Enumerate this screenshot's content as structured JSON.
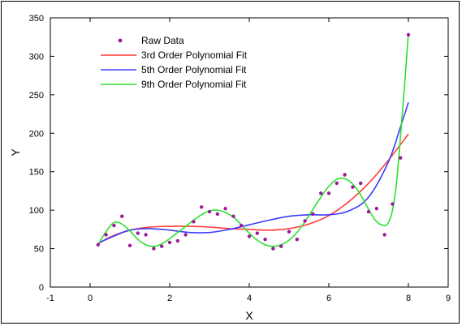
{
  "chart_data": {
    "type": "line",
    "title": "",
    "xlabel": "X",
    "ylabel": "Y",
    "xlim": [
      -1,
      9
    ],
    "ylim": [
      0,
      350
    ],
    "xticks": [
      -1,
      0,
      2,
      4,
      6,
      8,
      9
    ],
    "yticks": [
      0,
      50,
      100,
      150,
      200,
      250,
      300,
      350
    ],
    "xtick_labels": [
      "-1",
      "0",
      "2",
      "4",
      "6",
      "8",
      "9"
    ],
    "ytick_labels": [
      "0",
      "50",
      "100",
      "150",
      "200",
      "250",
      "300",
      "350"
    ],
    "grid": false,
    "legend_position": "top-left",
    "legend": [
      "Raw Data",
      "3rd Order Polynomial Fit",
      "5th Order Polynomial Fit",
      "9th Order Polynomial Fit"
    ],
    "colors": {
      "raw": "#9b1a9b",
      "fit3": "#ff3b3b",
      "fit5": "#3b3bff",
      "fit9": "#2de02d"
    },
    "raw_data": {
      "name": "Raw Data",
      "x": [
        0.2,
        0.4,
        0.6,
        0.8,
        1.0,
        1.2,
        1.4,
        1.6,
        1.8,
        2.0,
        2.2,
        2.4,
        2.6,
        2.8,
        3.0,
        3.2,
        3.4,
        3.6,
        3.8,
        4.0,
        4.2,
        4.4,
        4.6,
        4.8,
        5.0,
        5.2,
        5.4,
        5.6,
        5.8,
        6.0,
        6.2,
        6.4,
        6.6,
        6.8,
        7.0,
        7.2,
        7.4,
        7.6,
        7.8,
        8.0
      ],
      "y": [
        55,
        68,
        80,
        92,
        54,
        70,
        68,
        50,
        53,
        58,
        60,
        68,
        85,
        104,
        98,
        95,
        102,
        92,
        80,
        66,
        70,
        62,
        50,
        53,
        72,
        62,
        86,
        95,
        122,
        122,
        135,
        146,
        130,
        135,
        98,
        102,
        68,
        108,
        168,
        328
      ]
    },
    "series": [
      {
        "name": "3rd Order Polynomial Fit",
        "x": [
          0.2,
          0.5,
          1.0,
          1.5,
          2.0,
          2.5,
          3.0,
          3.5,
          4.0,
          4.5,
          5.0,
          5.5,
          6.0,
          6.5,
          7.0,
          7.5,
          8.0
        ],
        "y": [
          56,
          65,
          74,
          78,
          79,
          79,
          78,
          76,
          75,
          74,
          76,
          82,
          93,
          111,
          135,
          165,
          199
        ]
      },
      {
        "name": "5th Order Polynomial Fit",
        "x": [
          0.2,
          0.5,
          1.0,
          1.5,
          2.0,
          2.5,
          3.0,
          3.5,
          4.0,
          4.5,
          5.0,
          5.5,
          6.0,
          6.5,
          7.0,
          7.5,
          7.8,
          8.0
        ],
        "y": [
          57,
          64,
          74,
          76,
          74,
          71,
          71,
          75,
          81,
          87,
          92,
          94,
          94,
          99,
          117,
          163,
          208,
          240
        ]
      },
      {
        "name": "9th Order Polynomial Fit",
        "x": [
          0.2,
          0.4,
          0.6,
          0.8,
          1.0,
          1.2,
          1.4,
          1.6,
          1.8,
          2.0,
          2.2,
          2.4,
          2.6,
          2.8,
          3.0,
          3.2,
          3.4,
          3.6,
          3.8,
          4.0,
          4.2,
          4.4,
          4.6,
          4.8,
          5.0,
          5.2,
          5.4,
          5.6,
          5.8,
          6.0,
          6.2,
          6.4,
          6.6,
          6.8,
          7.0,
          7.2,
          7.4,
          7.5,
          7.6,
          7.7,
          7.8,
          7.9,
          8.0
        ],
        "y": [
          55,
          72,
          84,
          82,
          73,
          62,
          55,
          53,
          56,
          63,
          71,
          79,
          87,
          94,
          99,
          100,
          97,
          91,
          81,
          70,
          61,
          55,
          53,
          55,
          61,
          71,
          85,
          101,
          117,
          131,
          140,
          141,
          134,
          120,
          101,
          85,
          80,
          84,
          100,
          135,
          195,
          260,
          330
        ]
      }
    ]
  }
}
